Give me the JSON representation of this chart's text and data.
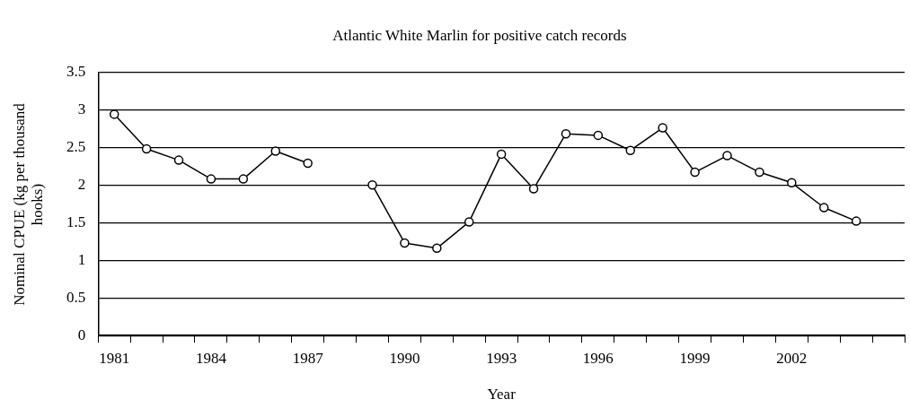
{
  "chart_data": {
    "type": "line",
    "title": "Atlantic White Marlin for positive catch records",
    "xlabel": "Year",
    "ylabel": "Nominal CPUE (kg per thousand hooks)",
    "categories": [
      "1981",
      null,
      null,
      "1984",
      null,
      null,
      "1987",
      null,
      null,
      "1990",
      null,
      null,
      "1993",
      null,
      null,
      "1996",
      null,
      null,
      "1999",
      null,
      null,
      "2002",
      null,
      null,
      null
    ],
    "series": [
      {
        "color": "#000000",
        "values": [
          2.94,
          2.48,
          2.33,
          2.08,
          2.08,
          2.45,
          2.29,
          null,
          2.0,
          1.23,
          1.16,
          1.51,
          2.41,
          1.95,
          2.68,
          2.66,
          2.46,
          2.76,
          2.17,
          2.39,
          2.17,
          2.03,
          1.7,
          1.52,
          null
        ]
      }
    ],
    "ylim": [
      0,
      3.5
    ],
    "yticks": [
      0,
      0.5,
      1,
      1.5,
      2,
      2.5,
      3,
      3.5
    ],
    "grid": "y",
    "legend": false,
    "marker": "circle",
    "line_style": "solid"
  }
}
